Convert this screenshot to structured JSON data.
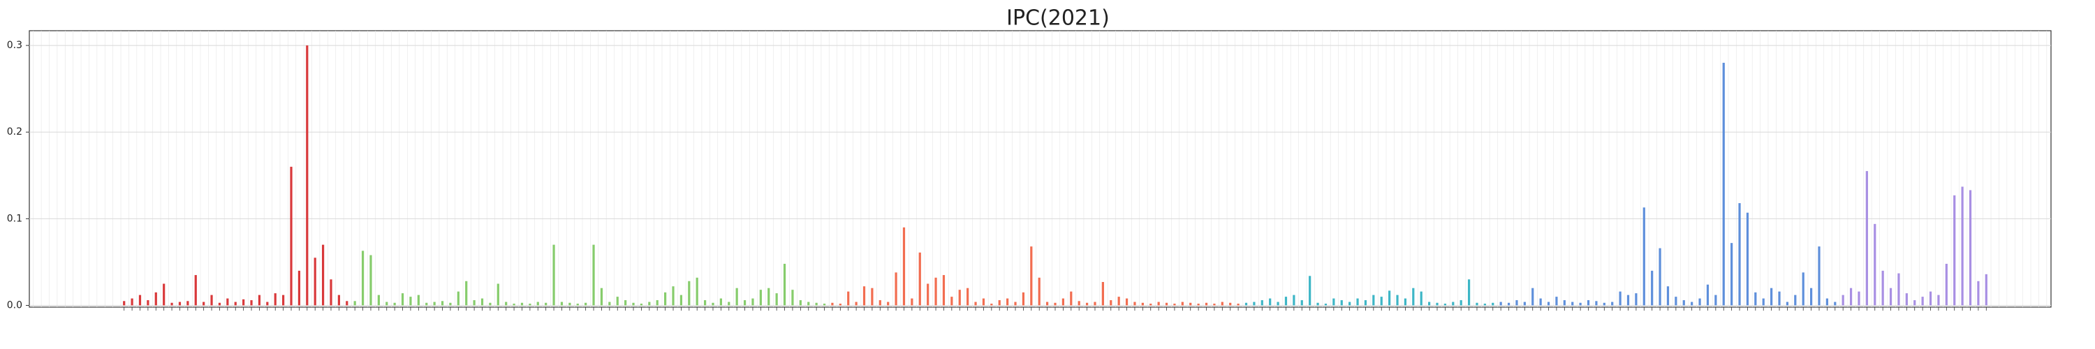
{
  "chart_data": {
    "type": "bar",
    "title": "IPC(2021)",
    "ylim": [
      -0.002,
      0.317
    ],
    "yticks": [
      {
        "value": 0,
        "label": "0.0"
      },
      0.1,
      0.2,
      0.3
    ],
    "grid": true,
    "series": [
      {
        "color": "#d9393b",
        "values": [
          0.005,
          0.008,
          0.012,
          0.006,
          0.015,
          0.025,
          0.003,
          0.004,
          0.005,
          0.035,
          0.004,
          0.012,
          0.003,
          0.008,
          0.004,
          0.007,
          0.006,
          0.012,
          0.004,
          0.014,
          0.012,
          0.16,
          0.04,
          0.3,
          0.055,
          0.07,
          0.03,
          0.012,
          0.005
        ]
      },
      {
        "color": "#86cc6c",
        "values": [
          0.005,
          0.063,
          0.058,
          0.012,
          0.004,
          0.003,
          0.014,
          0.01,
          0.012,
          0.003,
          0.004,
          0.005,
          0.003,
          0.016,
          0.028,
          0.006,
          0.008,
          0.003,
          0.025,
          0.004,
          0.002,
          0.003,
          0.002,
          0.004,
          0.003,
          0.07,
          0.004,
          0.003,
          0.002,
          0.003,
          0.07,
          0.02,
          0.004,
          0.01,
          0.006,
          0.003,
          0.002,
          0.004,
          0.006,
          0.015,
          0.022,
          0.012,
          0.028,
          0.032,
          0.006,
          0.003,
          0.008,
          0.004,
          0.02,
          0.006,
          0.008,
          0.018,
          0.02,
          0.014,
          0.048,
          0.018,
          0.006,
          0.004,
          0.003,
          0.002
        ]
      },
      {
        "color": "#f26d50",
        "values": [
          0.003,
          0.002,
          0.016,
          0.004,
          0.022,
          0.02,
          0.006,
          0.004,
          0.038,
          0.09,
          0.008,
          0.061,
          0.025,
          0.032,
          0.035,
          0.01,
          0.018,
          0.02,
          0.004,
          0.008,
          0.002,
          0.006,
          0.008,
          0.004,
          0.015,
          0.068,
          0.032,
          0.004,
          0.003,
          0.008,
          0.016,
          0.005,
          0.003,
          0.004,
          0.027,
          0.006,
          0.01,
          0.008,
          0.004,
          0.003,
          0.002,
          0.004,
          0.003,
          0.002,
          0.004,
          0.003,
          0.002,
          0.003,
          0.002,
          0.004,
          0.003,
          0.002
        ]
      },
      {
        "color": "#3db6c6",
        "values": [
          0.003,
          0.004,
          0.006,
          0.008,
          0.004,
          0.01,
          0.012,
          0.006,
          0.034,
          0.003,
          0.002,
          0.008,
          0.006,
          0.004,
          0.008,
          0.006,
          0.012,
          0.01,
          0.017,
          0.012,
          0.008,
          0.02,
          0.016,
          0.004,
          0.003,
          0.002,
          0.004,
          0.006,
          0.03,
          0.003,
          0.002,
          0.003
        ]
      },
      {
        "color": "#5e8fdb",
        "values": [
          0.004,
          0.003,
          0.006,
          0.004,
          0.02,
          0.008,
          0.004,
          0.01,
          0.006,
          0.004,
          0.003,
          0.006,
          0.005,
          0.003,
          0.004,
          0.016,
          0.012,
          0.014,
          0.113,
          0.04,
          0.066,
          0.022,
          0.01,
          0.006,
          0.004,
          0.008,
          0.024,
          0.012,
          0.28,
          0.072,
          0.118,
          0.107,
          0.015,
          0.008,
          0.02,
          0.016,
          0.004,
          0.012,
          0.038,
          0.02,
          0.068,
          0.008,
          0.004
        ]
      },
      {
        "color": "#a88fe3",
        "values": [
          0.012,
          0.02,
          0.016,
          0.155,
          0.094,
          0.04,
          0.02,
          0.037,
          0.014,
          0.006,
          0.01,
          0.016,
          0.012,
          0.048,
          0.127,
          0.137,
          0.133,
          0.028,
          0.036
        ]
      }
    ]
  }
}
